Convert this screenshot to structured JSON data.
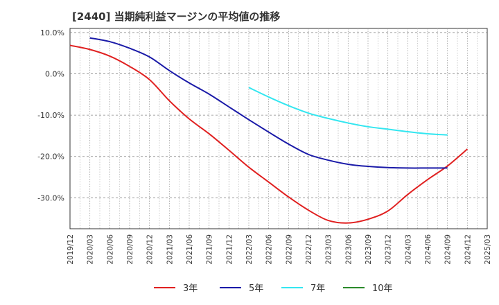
{
  "chart_data": {
    "type": "line",
    "title": "[2440]  当期純利益マージンの平均値の推移",
    "xlabel": "",
    "ylabel": "",
    "ylim": [
      -37.5,
      11.0
    ],
    "y_ticks": [
      10.0,
      0.0,
      -10.0,
      -20.0,
      -30.0
    ],
    "y_tick_labels": [
      "10.0%",
      "0.0%",
      "-10.0%",
      "-20.0%",
      "-30.0%"
    ],
    "x_tick_labels": [
      "2019/12",
      "2020/03",
      "2020/06",
      "2020/09",
      "2020/12",
      "2021/03",
      "2021/06",
      "2021/09",
      "2021/12",
      "2022/03",
      "2022/06",
      "2022/09",
      "2022/12",
      "2023/03",
      "2023/06",
      "2023/09",
      "2023/12",
      "2024/03",
      "2024/06",
      "2024/09",
      "2024/12",
      "2025/03"
    ],
    "grid": true,
    "legend_position": "bottom",
    "series": [
      {
        "name": "3年",
        "color": "#e02020",
        "start_index": 0,
        "values": [
          6.9,
          5.9,
          4.3,
          1.8,
          -1.4,
          -6.5,
          -10.9,
          -14.5,
          -18.5,
          -22.6,
          -26.2,
          -29.8,
          -33.0,
          -35.5,
          -36.1,
          -35.2,
          -33.2,
          -29.2,
          -25.6,
          -22.3,
          -18.2
        ]
      },
      {
        "name": "5年",
        "color": "#1a1aa8",
        "start_index": 1,
        "values": [
          8.7,
          7.8,
          6.2,
          4.1,
          0.8,
          -2.2,
          -4.9,
          -8.0,
          -11.1,
          -14.1,
          -17.0,
          -19.5,
          -20.9,
          -21.9,
          -22.4,
          -22.7,
          -22.8,
          -22.8,
          -22.8
        ]
      },
      {
        "name": "7年",
        "color": "#33e6f0",
        "start_index": 9,
        "values": [
          -3.3,
          -5.6,
          -7.7,
          -9.5,
          -10.8,
          -11.9,
          -12.8,
          -13.4,
          -14.0,
          -14.5,
          -14.8
        ]
      },
      {
        "name": "10年",
        "color": "#2a8a2a",
        "start_index": 0,
        "values": []
      }
    ]
  }
}
